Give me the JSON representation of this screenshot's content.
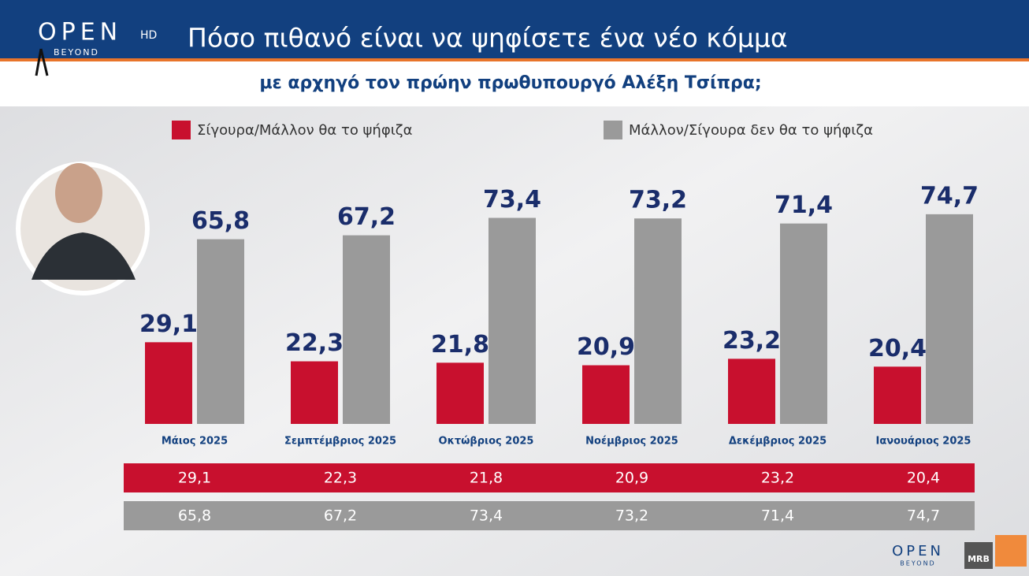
{
  "branding": {
    "channel": "OPEN",
    "hd": "HD",
    "tagline": "BEYOND",
    "pollster": "MRB"
  },
  "chart_data": {
    "type": "bar",
    "title": "Πόσο πιθανό είναι να ψηφίσετε ένα νέο κόμμα",
    "subtitle": "με αρχηγό τον πρώην πρωθυπουργό Αλέξη Τσίπρα;",
    "categories": [
      "Μάιος 2025",
      "Σεμπτέμβριος 2025",
      "Οκτώβριος 2025",
      "Νοέμβριος 2025",
      "Δεκέμβριος 2025",
      "Ιανουάριος 2025"
    ],
    "series": [
      {
        "name": "Σίγουρα/Μάλλον θα το ψήφιζα",
        "color": "#c8102e",
        "values": [
          29.1,
          22.3,
          21.8,
          20.9,
          23.2,
          20.4
        ],
        "value_labels": [
          "29,1",
          "22,3",
          "21,8",
          "20,9",
          "23,2",
          "20,4"
        ]
      },
      {
        "name": "Μάλλον/Σίγουρα δεν θα το ψήφιζα",
        "color": "#9a9a9a",
        "values": [
          65.8,
          67.2,
          73.4,
          73.2,
          71.4,
          74.7
        ],
        "value_labels": [
          "65,8",
          "67,2",
          "73,4",
          "73,2",
          "71,4",
          "74,7"
        ]
      }
    ],
    "ylim": [
      0,
      80
    ]
  }
}
